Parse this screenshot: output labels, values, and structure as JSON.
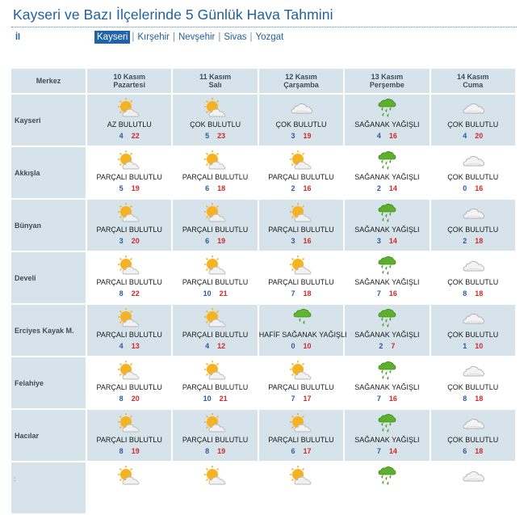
{
  "page": {
    "title": "Kayseri ve Bazı İlçelerinde 5 Günlük Hava Tahmini",
    "il_label": "İl"
  },
  "tabs": [
    {
      "label": "Kayseri",
      "active": true
    },
    {
      "label": "Kırşehir",
      "active": false
    },
    {
      "label": "Nevşehir",
      "active": false
    },
    {
      "label": "Sivas",
      "active": false
    },
    {
      "label": "Yozgat",
      "active": false
    }
  ],
  "table": {
    "merkez_header": "Merkez",
    "days": [
      {
        "date": "10 Kasım",
        "weekday": "Pazartesi"
      },
      {
        "date": "11 Kasım",
        "weekday": "Salı"
      },
      {
        "date": "12 Kasım",
        "weekday": "Çarşamba"
      },
      {
        "date": "13 Kasım",
        "weekday": "Perşembe"
      },
      {
        "date": "14 Kasım",
        "weekday": "Cuma"
      }
    ],
    "rows": [
      {
        "place": "Kayseri",
        "forecasts": [
          {
            "desc": "AZ BULUTLU",
            "min": "4",
            "max": "22",
            "icon": "sun-cloud-icon"
          },
          {
            "desc": "ÇOK BULUTLU",
            "min": "5",
            "max": "23",
            "icon": "sun-cloud-icon"
          },
          {
            "desc": "ÇOK BULUTLU",
            "min": "3",
            "max": "19",
            "icon": "cloud-icon"
          },
          {
            "desc": "SAĞANAK YAĞIŞLI",
            "min": "4",
            "max": "16",
            "icon": "shower-icon"
          },
          {
            "desc": "ÇOK BULUTLU",
            "min": "4",
            "max": "20",
            "icon": "cloud-icon"
          }
        ]
      },
      {
        "place": "Akkışla",
        "forecasts": [
          {
            "desc": "PARÇALI BULUTLU",
            "min": "5",
            "max": "19",
            "icon": "sun-cloud-icon"
          },
          {
            "desc": "PARÇALI BULUTLU",
            "min": "6",
            "max": "18",
            "icon": "sun-cloud-icon"
          },
          {
            "desc": "PARÇALI BULUTLU",
            "min": "2",
            "max": "16",
            "icon": "sun-cloud-icon"
          },
          {
            "desc": "SAĞANAK YAĞIŞLI",
            "min": "2",
            "max": "14",
            "icon": "shower-icon"
          },
          {
            "desc": "ÇOK BULUTLU",
            "min": "0",
            "max": "16",
            "icon": "cloud-icon"
          }
        ]
      },
      {
        "place": "Bünyan",
        "forecasts": [
          {
            "desc": "PARÇALI BULUTLU",
            "min": "3",
            "max": "20",
            "icon": "sun-cloud-icon"
          },
          {
            "desc": "PARÇALI BULUTLU",
            "min": "6",
            "max": "19",
            "icon": "sun-cloud-icon"
          },
          {
            "desc": "PARÇALI BULUTLU",
            "min": "3",
            "max": "16",
            "icon": "sun-cloud-icon"
          },
          {
            "desc": "SAĞANAK YAĞIŞLI",
            "min": "3",
            "max": "14",
            "icon": "shower-icon"
          },
          {
            "desc": "ÇOK BULUTLU",
            "min": "2",
            "max": "18",
            "icon": "cloud-icon"
          }
        ]
      },
      {
        "place": "Develi",
        "forecasts": [
          {
            "desc": "PARÇALI BULUTLU",
            "min": "8",
            "max": "22",
            "icon": "sun-cloud-icon"
          },
          {
            "desc": "PARÇALI BULUTLU",
            "min": "10",
            "max": "21",
            "icon": "sun-cloud-icon"
          },
          {
            "desc": "PARÇALI BULUTLU",
            "min": "7",
            "max": "18",
            "icon": "sun-cloud-icon"
          },
          {
            "desc": "SAĞANAK YAĞIŞLI",
            "min": "7",
            "max": "16",
            "icon": "shower-icon"
          },
          {
            "desc": "ÇOK BULUTLU",
            "min": "8",
            "max": "18",
            "icon": "cloud-icon"
          }
        ]
      },
      {
        "place": "Erciyes Kayak M.",
        "forecasts": [
          {
            "desc": "PARÇALI BULUTLU",
            "min": "4",
            "max": "13",
            "icon": "sun-cloud-icon"
          },
          {
            "desc": "PARÇALI BULUTLU",
            "min": "4",
            "max": "12",
            "icon": "sun-cloud-icon"
          },
          {
            "desc": "HAFİF SAĞANAK YAĞIŞLI",
            "min": "0",
            "max": "10",
            "icon": "light-shower-icon"
          },
          {
            "desc": "SAĞANAK YAĞIŞLI",
            "min": "2",
            "max": "7",
            "icon": "shower-icon"
          },
          {
            "desc": "ÇOK BULUTLU",
            "min": "1",
            "max": "10",
            "icon": "cloud-icon"
          }
        ]
      },
      {
        "place": "Felahiye",
        "forecasts": [
          {
            "desc": "PARÇALI BULUTLU",
            "min": "8",
            "max": "20",
            "icon": "sun-cloud-icon"
          },
          {
            "desc": "PARÇALI BULUTLU",
            "min": "10",
            "max": "21",
            "icon": "sun-cloud-icon"
          },
          {
            "desc": "PARÇALI BULUTLU",
            "min": "7",
            "max": "17",
            "icon": "sun-cloud-icon"
          },
          {
            "desc": "SAĞANAK YAĞIŞLI",
            "min": "7",
            "max": "16",
            "icon": "shower-icon"
          },
          {
            "desc": "ÇOK BULUTLU",
            "min": "8",
            "max": "18",
            "icon": "cloud-icon"
          }
        ]
      },
      {
        "place": "Hacılar",
        "forecasts": [
          {
            "desc": "PARÇALI BULUTLU",
            "min": "8",
            "max": "19",
            "icon": "sun-cloud-icon"
          },
          {
            "desc": "PARÇALI BULUTLU",
            "min": "8",
            "max": "19",
            "icon": "sun-cloud-icon"
          },
          {
            "desc": "PARÇALI BULUTLU",
            "min": "6",
            "max": "17",
            "icon": "sun-cloud-icon"
          },
          {
            "desc": "SAĞANAK YAĞIŞLI",
            "min": "7",
            "max": "14",
            "icon": "shower-icon"
          },
          {
            "desc": "ÇOK BULUTLU",
            "min": "6",
            "max": "18",
            "icon": "cloud-icon"
          }
        ]
      },
      {
        "place": "",
        "forecasts": [
          {
            "desc": "",
            "min": "",
            "max": "",
            "icon": "sun-cloud-icon"
          },
          {
            "desc": "",
            "min": "",
            "max": "",
            "icon": "sun-cloud-icon"
          },
          {
            "desc": "",
            "min": "",
            "max": "",
            "icon": "sun-cloud-icon"
          },
          {
            "desc": "",
            "min": "",
            "max": "",
            "icon": "shower-icon"
          },
          {
            "desc": "",
            "min": "",
            "max": "",
            "icon": "cloud-icon"
          }
        ]
      }
    ]
  },
  "colors": {
    "accent": "#1f62a8",
    "header_bg": "#d7e3eb",
    "min_temp": "#2f57a8",
    "max_temp": "#d12a2a"
  }
}
